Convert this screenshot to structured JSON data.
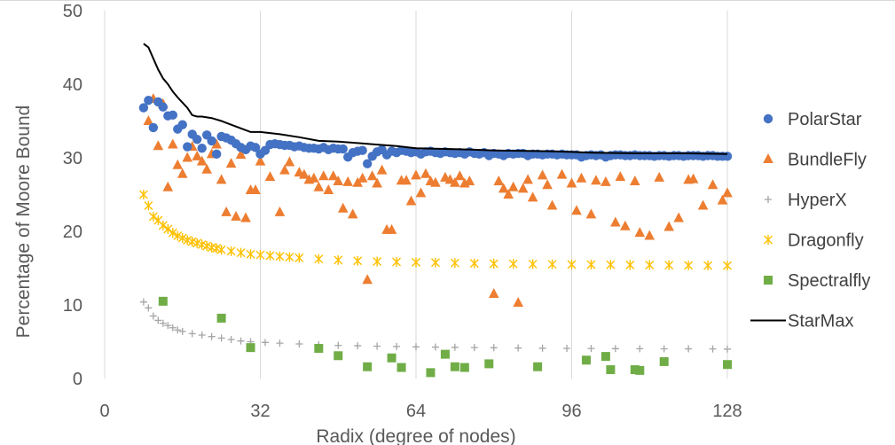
{
  "chart_data": {
    "type": "scatter",
    "title": "",
    "xlabel": "Radix (degree of nodes)",
    "ylabel": "Percentage of Moore Bound",
    "xlim": [
      0,
      128
    ],
    "ylim": [
      0,
      50
    ],
    "xticks": [
      "0",
      "32",
      "64",
      "96",
      "128"
    ],
    "yticks": [
      "0",
      "10",
      "20",
      "30",
      "40",
      "50"
    ],
    "grid": "vertical",
    "legend_position": "right",
    "series": [
      {
        "name": "PolarStar",
        "marker": "circle",
        "color": "#4472C4",
        "x": [
          8,
          9,
          10,
          11,
          12,
          13,
          14,
          15,
          16,
          17,
          18,
          19,
          20,
          21,
          22,
          23,
          24,
          25,
          26,
          27,
          28,
          29,
          30,
          31,
          32,
          33,
          34,
          35,
          36,
          37,
          38,
          39,
          40,
          41,
          42,
          43,
          44,
          45,
          46,
          47,
          48,
          49,
          50,
          51,
          52,
          53,
          54,
          55,
          56,
          57,
          58,
          59,
          60,
          61,
          62,
          63,
          64,
          65,
          66,
          67,
          68,
          69,
          70,
          71,
          72,
          73,
          74,
          75,
          76,
          77,
          78,
          79,
          80,
          81,
          82,
          83,
          84,
          85,
          86,
          87,
          88,
          89,
          90,
          91,
          92,
          93,
          94,
          95,
          96,
          97,
          98,
          99,
          100,
          101,
          102,
          103,
          104,
          105,
          106,
          107,
          108,
          109,
          110,
          111,
          112,
          113,
          114,
          115,
          116,
          117,
          118,
          119,
          120,
          121,
          122,
          123,
          124,
          125,
          126,
          127,
          128
        ],
        "y": [
          36.8,
          37.8,
          34.1,
          37.6,
          36.9,
          35.7,
          35.8,
          33.9,
          34.5,
          31.5,
          33.2,
          32.5,
          31.3,
          33.1,
          32.3,
          30.5,
          32.9,
          32.7,
          32.4,
          31.9,
          31.4,
          31.1,
          31.6,
          31.4,
          30.5,
          31.0,
          31.8,
          31.9,
          31.8,
          31.7,
          31.7,
          31.5,
          31.6,
          31.4,
          31.3,
          31.3,
          31.2,
          31.4,
          31.1,
          31.3,
          31.2,
          31.2,
          30.1,
          30.7,
          30.9,
          31.0,
          29.2,
          30.2,
          30.8,
          31.1,
          30.4,
          30.9,
          30.7,
          31.0,
          30.9,
          30.7,
          30.8,
          30.5,
          30.8,
          30.9,
          30.7,
          30.6,
          30.8,
          30.7,
          30.6,
          30.7,
          30.5,
          30.8,
          30.6,
          30.5,
          30.7,
          30.3,
          30.6,
          30.5,
          30.3,
          30.6,
          30.5,
          30.6,
          30.6,
          30.3,
          30.5,
          30.5,
          30.4,
          30.5,
          30.5,
          30.4,
          30.5,
          30.4,
          30.4,
          30.4,
          30.1,
          30.3,
          30.4,
          30.3,
          30.4,
          30.1,
          30.3,
          30.4,
          30.4,
          30.3,
          30.3,
          30.4,
          30.3,
          30.3,
          30.3,
          30.2,
          30.3,
          30.3,
          30.2,
          30.3,
          30.3,
          30.2,
          30.3,
          30.3,
          30.3,
          30.2,
          30.3,
          30.3,
          30.2,
          30.2,
          30.2
        ]
      },
      {
        "name": "BundleFly",
        "marker": "triangle",
        "color": "#ED7D31",
        "x": [
          9,
          10,
          11,
          12,
          13,
          14,
          15,
          16,
          17,
          18,
          19,
          20,
          21,
          22,
          23,
          24,
          25,
          26,
          27,
          28,
          29,
          30,
          31,
          32,
          34,
          36,
          37,
          38,
          40,
          41,
          42,
          43,
          44,
          45,
          46,
          47,
          48,
          49,
          50,
          51,
          52,
          53,
          54,
          55,
          56,
          57,
          58,
          59,
          61,
          62,
          63,
          64,
          65,
          66,
          67,
          68,
          70,
          71,
          72,
          73,
          74,
          75,
          80,
          81,
          82,
          83,
          84,
          85,
          86,
          87,
          88,
          90,
          91,
          92,
          94,
          96,
          97,
          98,
          100,
          101,
          103,
          105,
          106,
          107,
          109,
          110,
          112,
          114,
          116,
          118,
          120,
          121,
          123,
          125,
          127,
          128
        ],
        "y": [
          35.0,
          38.0,
          31.6,
          37.3,
          26.0,
          31.8,
          29.0,
          27.8,
          30.0,
          31.5,
          30.2,
          29.5,
          28.4,
          30.5,
          31.8,
          27.0,
          22.6,
          29.2,
          22.0,
          30.4,
          21.8,
          25.6,
          25.6,
          29.5,
          27.4,
          22.6,
          28.3,
          29.4,
          28.0,
          27.7,
          27.0,
          27.2,
          26.0,
          27.5,
          25.6,
          27.5,
          26.8,
          23.1,
          26.7,
          22.3,
          26.6,
          27.2,
          13.4,
          27.5,
          26.5,
          28.3,
          20.2,
          20.2,
          26.9,
          26.9,
          24.1,
          27.6,
          25.2,
          27.8,
          26.8,
          26.6,
          27.3,
          27.0,
          26.6,
          27.5,
          26.5,
          26.8,
          11.5,
          26.8,
          25.8,
          25.0,
          26.0,
          10.3,
          25.8,
          27.0,
          24.6,
          27.6,
          26.3,
          23.5,
          27.7,
          26.5,
          22.8,
          27.2,
          22.3,
          26.9,
          26.7,
          21.2,
          27.4,
          20.7,
          26.8,
          19.8,
          19.4,
          27.3,
          20.6,
          21.8,
          27.0,
          27.1,
          23.5,
          26.3,
          24.2,
          25.2
        ]
      },
      {
        "name": "HyperX",
        "marker": "plus",
        "color": "#A5A5A5",
        "x": [
          8,
          9,
          10,
          11,
          12,
          13,
          14,
          15,
          16,
          18,
          20,
          22,
          24,
          26,
          28,
          30,
          33,
          36,
          40,
          44,
          48,
          52,
          56,
          60,
          64,
          68,
          72,
          76,
          80,
          85,
          90,
          95,
          100,
          105,
          110,
          115,
          120,
          125,
          128
        ],
        "y": [
          10.4,
          9.6,
          8.5,
          7.9,
          7.5,
          7.2,
          6.9,
          6.6,
          6.4,
          6.1,
          5.9,
          5.7,
          5.5,
          5.3,
          5.1,
          5.0,
          4.9,
          4.8,
          4.7,
          4.6,
          4.5,
          4.45,
          4.4,
          4.35,
          4.3,
          4.27,
          4.24,
          4.2,
          4.18,
          4.15,
          4.12,
          4.1,
          4.08,
          4.06,
          4.05,
          4.04,
          4.03,
          4.02,
          4.0
        ]
      },
      {
        "name": "Dragonfly",
        "marker": "star",
        "color": "#FFC000",
        "x": [
          8,
          9,
          10,
          11,
          12,
          13,
          14,
          15,
          16,
          17,
          18,
          19,
          20,
          21,
          22,
          23,
          24,
          26,
          28,
          30,
          32,
          34,
          36,
          38,
          40,
          44,
          48,
          52,
          56,
          60,
          64,
          68,
          72,
          76,
          80,
          84,
          88,
          92,
          96,
          100,
          104,
          108,
          112,
          116,
          120,
          124,
          128
        ],
        "y": [
          25.0,
          23.5,
          22.0,
          21.5,
          20.8,
          20.3,
          19.8,
          19.4,
          19.1,
          18.8,
          18.6,
          18.4,
          18.2,
          18.0,
          17.8,
          17.7,
          17.5,
          17.3,
          17.1,
          16.9,
          16.8,
          16.7,
          16.6,
          16.5,
          16.4,
          16.25,
          16.1,
          16.0,
          15.9,
          15.85,
          15.8,
          15.75,
          15.7,
          15.65,
          15.6,
          15.58,
          15.55,
          15.52,
          15.5,
          15.48,
          15.46,
          15.44,
          15.42,
          15.4,
          15.38,
          15.36,
          15.35
        ]
      },
      {
        "name": "Spectralfly",
        "marker": "square",
        "color": "#70AD47",
        "x": [
          12,
          24,
          30,
          44,
          48,
          54,
          59,
          61,
          67,
          70,
          72,
          74,
          79,
          89,
          99,
          103,
          104,
          109,
          110,
          115,
          128
        ],
        "y": [
          10.5,
          8.2,
          4.2,
          4.1,
          3.1,
          1.6,
          2.8,
          1.5,
          0.8,
          3.3,
          1.6,
          1.5,
          2.0,
          1.6,
          2.5,
          3.0,
          1.2,
          1.2,
          1.1,
          2.3,
          1.9
        ]
      },
      {
        "name": "StarMax",
        "marker": "line",
        "color": "#000000",
        "x": [
          8,
          9,
          10,
          11,
          12,
          13,
          14,
          15,
          16,
          17,
          18,
          19,
          20,
          22,
          24,
          26,
          28,
          30,
          32,
          36,
          40,
          44,
          48,
          52,
          56,
          60,
          64,
          70,
          76,
          80,
          90,
          96,
          100,
          110,
          120,
          128
        ],
        "y": [
          45.5,
          45.0,
          43.5,
          42.0,
          40.8,
          40.0,
          39.0,
          38.2,
          37.5,
          36.8,
          35.8,
          35.6,
          35.6,
          35.4,
          35.0,
          34.5,
          34.0,
          33.5,
          33.5,
          33.2,
          32.8,
          32.3,
          32.2,
          32.0,
          31.8,
          31.6,
          31.3,
          31.2,
          31.1,
          31.0,
          30.9,
          30.8,
          30.7,
          30.6,
          30.6,
          30.5
        ]
      }
    ]
  }
}
